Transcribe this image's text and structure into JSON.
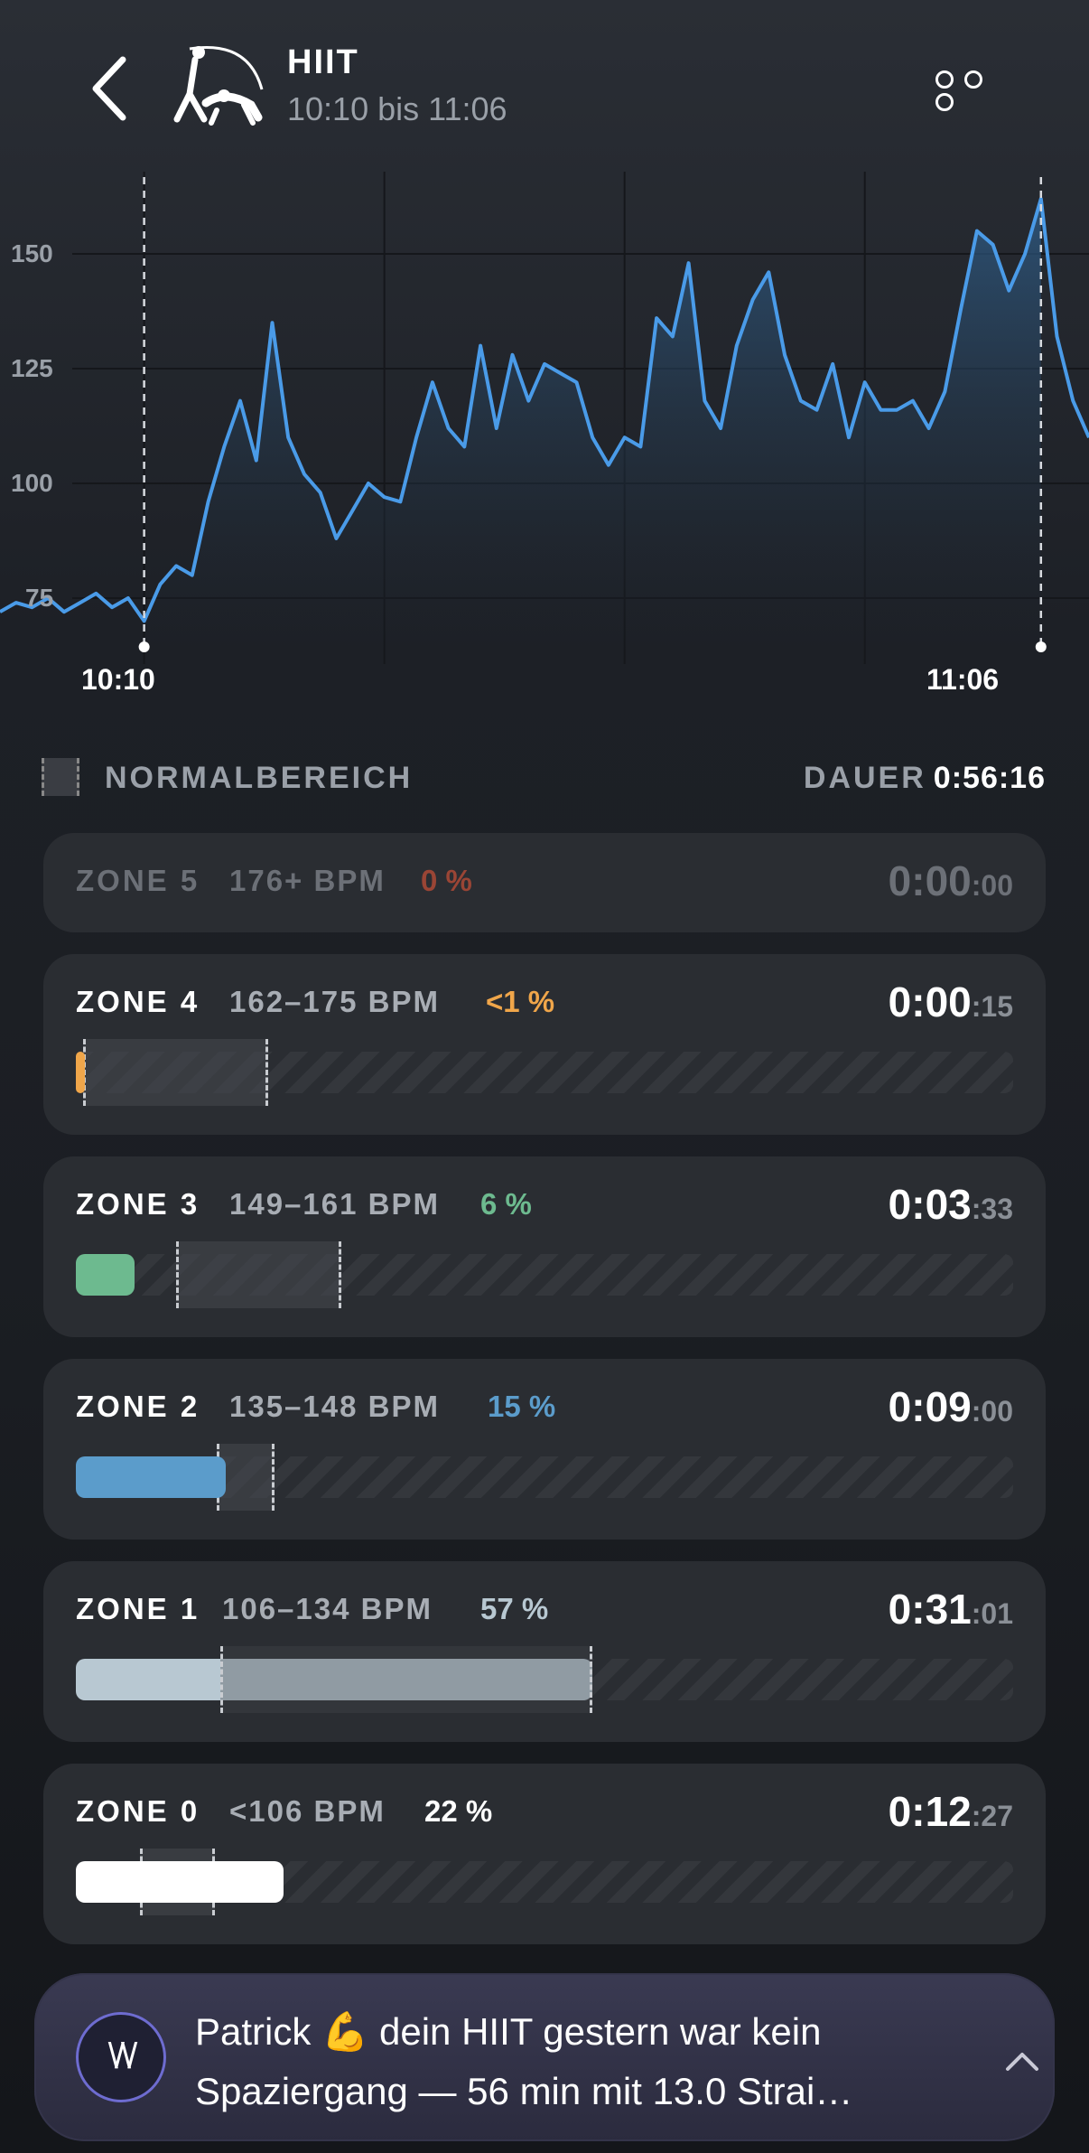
{
  "header": {
    "title": "HIIT",
    "subtitle": "10:10 bis 11:06"
  },
  "icons": {
    "back": "chevron-left-icon",
    "activity": "hiit-figure-icon",
    "more": "more-dots-icon",
    "notification": "whoop-logo-icon",
    "expand": "chevron-up-icon"
  },
  "chart_data": {
    "type": "area",
    "y_ticks": [
      "150",
      "125",
      "100",
      "75"
    ],
    "x_ticks": [
      "10:10",
      "11:06"
    ],
    "ylim": [
      62,
      167
    ],
    "xlim": [
      -9,
      59
    ],
    "color": "#4a9be8",
    "grid": true,
    "x": [
      -9,
      -8,
      -7,
      -6,
      -5,
      -4,
      -3,
      -2,
      -1,
      0,
      1,
      2,
      3,
      4,
      5,
      6,
      7,
      8,
      9,
      10,
      11,
      12,
      13,
      14,
      15,
      16,
      17,
      18,
      19,
      20,
      21,
      22,
      23,
      24,
      25,
      26,
      27,
      28,
      29,
      30,
      31,
      32,
      33,
      34,
      35,
      36,
      37,
      38,
      39,
      40,
      41,
      42,
      43,
      44,
      45,
      46,
      47,
      48,
      49,
      50,
      51,
      52,
      53,
      54,
      55,
      56,
      57,
      58,
      59
    ],
    "values": [
      72,
      74,
      73,
      75,
      72,
      74,
      76,
      73,
      75,
      70,
      78,
      82,
      80,
      96,
      108,
      118,
      105,
      135,
      110,
      102,
      98,
      88,
      94,
      100,
      97,
      96,
      110,
      122,
      112,
      108,
      130,
      112,
      128,
      118,
      126,
      124,
      122,
      110,
      104,
      110,
      108,
      136,
      132,
      148,
      118,
      112,
      130,
      140,
      146,
      128,
      118,
      116,
      126,
      110,
      122,
      116,
      116,
      118,
      112,
      120,
      138,
      155,
      152,
      142,
      150,
      162,
      132,
      118,
      110
    ]
  },
  "normal_range": {
    "label": "NORMALBEREICH",
    "duration_label": "DAUER",
    "duration_value": "0:56:16"
  },
  "zones": [
    {
      "name": "ZONE 5",
      "range": "176+ BPM",
      "percent": "0 %",
      "time_main": "0:00",
      "time_sec": ":00",
      "color": "#c0533d",
      "fill": 0,
      "normal_start": 0,
      "normal_end": 0
    },
    {
      "name": "ZONE 4",
      "range": "162–175 BPM",
      "percent": "<1 %",
      "time_main": "0:00",
      "time_sec": ":15",
      "color": "#f0a64a",
      "fill": 0.01,
      "normal_start": 0.008,
      "normal_end": 0.205
    },
    {
      "name": "ZONE 3",
      "range": "149–161 BPM",
      "percent": "6 %",
      "time_main": "0:03",
      "time_sec": ":33",
      "color": "#6dba8f",
      "fill": 0.063,
      "normal_start": 0.107,
      "normal_end": 0.283
    },
    {
      "name": "ZONE 2",
      "range": "135–148 BPM",
      "percent": "15 %",
      "time_main": "0:09",
      "time_sec": ":00",
      "color": "#5b9ccb",
      "fill": 0.16,
      "normal_start": 0.15,
      "normal_end": 0.212
    },
    {
      "name": "ZONE 1",
      "range": "106–134 BPM",
      "percent": "57 %",
      "time_main": "0:31",
      "time_sec": ":01",
      "color": "#b8c8d2",
      "fill": 0.551,
      "normal_start": 0.154,
      "normal_end": 0.551
    },
    {
      "name": "ZONE 0",
      "range": "<106 BPM",
      "percent": "22 %",
      "time_main": "0:12",
      "time_sec": ":27",
      "color": "#ffffff",
      "fill": 0.222,
      "normal_start": 0.068,
      "normal_end": 0.148
    }
  ],
  "notification": {
    "icon_text": "\\/\\/",
    "text": "Patrick 💪 dein HIIT gestern war kein Spaziergang — 56 min mit 13.0 Strai…"
  }
}
